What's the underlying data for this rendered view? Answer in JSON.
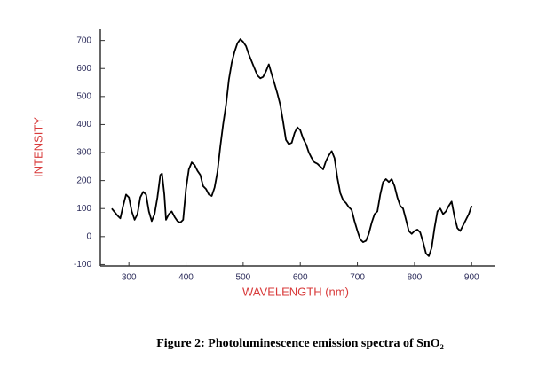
{
  "chart_data": {
    "type": "line",
    "title": "Figure 2: Photoluminescence emission spectra of SnO₂",
    "xlabel": "WAVELENGTH (nm)",
    "ylabel": "INTENSITY",
    "color": "#000000",
    "xlim": [
      250,
      940
    ],
    "xticks": [
      300,
      400,
      500,
      600,
      700,
      800,
      900
    ],
    "ylim": [
      -105,
      740
    ],
    "yticks": [
      -100,
      0,
      100,
      200,
      300,
      400,
      500,
      600,
      700
    ],
    "x": [
      270,
      280,
      285,
      290,
      295,
      300,
      305,
      310,
      315,
      320,
      325,
      330,
      335,
      340,
      345,
      350,
      355,
      358,
      362,
      365,
      370,
      375,
      380,
      385,
      390,
      395,
      400,
      405,
      410,
      415,
      420,
      425,
      430,
      435,
      440,
      445,
      450,
      455,
      460,
      465,
      470,
      475,
      480,
      485,
      490,
      495,
      500,
      505,
      510,
      515,
      520,
      525,
      530,
      535,
      540,
      545,
      550,
      555,
      560,
      565,
      570,
      575,
      580,
      585,
      590,
      595,
      600,
      605,
      610,
      615,
      620,
      625,
      630,
      635,
      640,
      645,
      650,
      655,
      660,
      665,
      670,
      675,
      680,
      685,
      690,
      695,
      700,
      705,
      710,
      715,
      720,
      725,
      730,
      735,
      740,
      745,
      750,
      755,
      760,
      765,
      770,
      775,
      780,
      785,
      790,
      795,
      800,
      805,
      810,
      815,
      820,
      825,
      830,
      835,
      840,
      845,
      850,
      855,
      860,
      865,
      870,
      875,
      880,
      885,
      890,
      895,
      900
    ],
    "values": [
      100,
      75,
      65,
      110,
      150,
      140,
      90,
      60,
      80,
      140,
      160,
      150,
      90,
      55,
      80,
      140,
      220,
      225,
      150,
      60,
      80,
      90,
      70,
      55,
      50,
      60,
      170,
      240,
      265,
      255,
      235,
      220,
      180,
      170,
      150,
      145,
      175,
      230,
      320,
      400,
      470,
      560,
      620,
      660,
      690,
      705,
      695,
      680,
      650,
      625,
      600,
      575,
      565,
      570,
      590,
      615,
      580,
      545,
      510,
      470,
      410,
      345,
      330,
      335,
      370,
      390,
      380,
      350,
      330,
      300,
      280,
      265,
      260,
      250,
      240,
      270,
      290,
      305,
      280,
      210,
      155,
      130,
      120,
      105,
      95,
      55,
      20,
      -10,
      -20,
      -15,
      10,
      50,
      80,
      90,
      150,
      195,
      205,
      195,
      205,
      180,
      140,
      110,
      100,
      60,
      20,
      10,
      20,
      25,
      15,
      -20,
      -60,
      -70,
      -40,
      30,
      90,
      100,
      80,
      90,
      110,
      125,
      70,
      30,
      20,
      40,
      60,
      80,
      110
    ]
  }
}
